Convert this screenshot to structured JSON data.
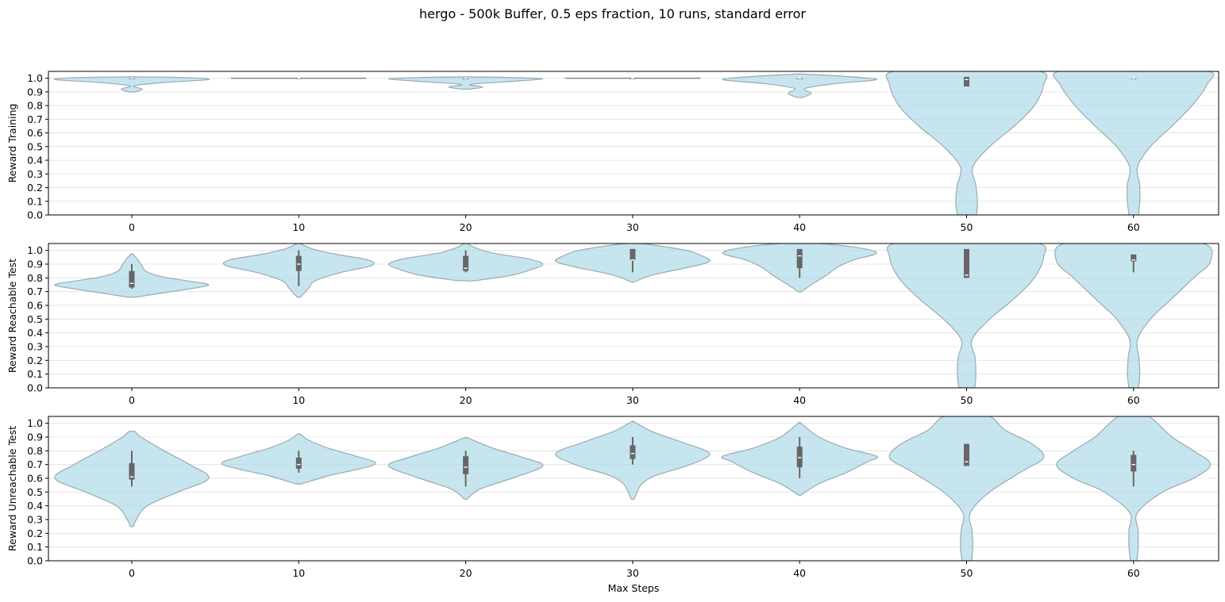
{
  "chart_data": {
    "type": "violin",
    "title": "hergo - 500k Buffer, 0.5 eps fraction, 10 runs, standard error",
    "xlabel": "Max Steps",
    "categories": [
      "0",
      "10",
      "20",
      "30",
      "40",
      "50",
      "60"
    ],
    "yticks": [
      "0.0",
      "0.1",
      "0.2",
      "0.3",
      "0.4",
      "0.5",
      "0.6",
      "0.7",
      "0.8",
      "0.9",
      "1.0"
    ],
    "ylim": [
      0,
      1.05
    ],
    "grid": "horizontal",
    "colors": {
      "violin_fill": "#add8e6",
      "violin_edge": "#9aaab4",
      "box": "#666666",
      "median": "#ffffff",
      "grid": "#e0e0e0"
    },
    "panels": [
      {
        "ylabel": "Reward Training",
        "violins": [
          {
            "category": "0",
            "range": [
              0.9,
              1.01
            ],
            "q1": 1.0,
            "median": 1.0,
            "q3": 1.0,
            "whisker": [
              1.0,
              1.0
            ],
            "profile": [
              [
                0.9,
                0.04
              ],
              [
                0.92,
                0.14
              ],
              [
                0.945,
                0.03
              ],
              [
                0.97,
                0.45
              ],
              [
                0.99,
                1.0
              ],
              [
                1.005,
                0.7
              ],
              [
                1.01,
                0.05
              ]
            ]
          },
          {
            "category": "10",
            "range": [
              1.0,
              1.0
            ],
            "q1": 1.0,
            "median": 1.0,
            "q3": 1.0,
            "whisker": [
              1.0,
              1.0
            ],
            "flat": true
          },
          {
            "category": "20",
            "range": [
              0.92,
              1.01
            ],
            "q1": 1.0,
            "median": 1.0,
            "q3": 1.0,
            "whisker": [
              1.0,
              1.0
            ],
            "profile": [
              [
                0.92,
                0.04
              ],
              [
                0.935,
                0.22
              ],
              [
                0.955,
                0.06
              ],
              [
                0.975,
                0.55
              ],
              [
                0.995,
                1.0
              ],
              [
                1.005,
                0.6
              ],
              [
                1.01,
                0.05
              ]
            ]
          },
          {
            "category": "30",
            "range": [
              1.0,
              1.0
            ],
            "q1": 1.0,
            "median": 1.0,
            "q3": 1.0,
            "whisker": [
              1.0,
              1.0
            ],
            "flat": true
          },
          {
            "category": "40",
            "range": [
              0.86,
              1.03
            ],
            "q1": 1.0,
            "median": 1.0,
            "q3": 1.0,
            "whisker": [
              1.0,
              1.0
            ],
            "profile": [
              [
                0.86,
                0.04
              ],
              [
                0.89,
                0.15
              ],
              [
                0.925,
                0.07
              ],
              [
                0.96,
                0.45
              ],
              [
                0.99,
                1.0
              ],
              [
                1.015,
                0.55
              ],
              [
                1.03,
                0.05
              ]
            ]
          },
          {
            "category": "50",
            "range": [
              0.0,
              1.05
            ],
            "q1": 0.94,
            "median": 0.99,
            "q3": 1.01,
            "whisker": [
              0.94,
              1.01
            ],
            "profile": [
              [
                0.0,
                0.12
              ],
              [
                0.1,
                0.14
              ],
              [
                0.22,
                0.12
              ],
              [
                0.35,
                0.08
              ],
              [
                0.5,
                0.3
              ],
              [
                0.65,
                0.62
              ],
              [
                0.8,
                0.88
              ],
              [
                0.95,
                1.0
              ],
              [
                1.05,
                0.95
              ]
            ]
          },
          {
            "category": "60",
            "range": [
              0.0,
              1.05
            ],
            "q1": 1.0,
            "median": 1.0,
            "q3": 1.0,
            "whisker": [
              1.0,
              1.0
            ],
            "profile": [
              [
                0.0,
                0.06
              ],
              [
                0.1,
                0.08
              ],
              [
                0.22,
                0.08
              ],
              [
                0.35,
                0.05
              ],
              [
                0.5,
                0.22
              ],
              [
                0.65,
                0.5
              ],
              [
                0.8,
                0.76
              ],
              [
                0.95,
                0.95
              ],
              [
                1.05,
                0.97
              ]
            ]
          }
        ]
      },
      {
        "ylabel": "Reward Reachable Test",
        "violins": [
          {
            "category": "0",
            "range": [
              0.66,
              0.97
            ],
            "q1": 0.73,
            "median": 0.76,
            "q3": 0.85,
            "whisker": [
              0.72,
              0.9
            ],
            "profile": [
              [
                0.66,
                0.05
              ],
              [
                0.69,
                0.4
              ],
              [
                0.72,
                0.75
              ],
              [
                0.75,
                1.0
              ],
              [
                0.78,
                0.7
              ],
              [
                0.81,
                0.38
              ],
              [
                0.85,
                0.18
              ],
              [
                0.9,
                0.12
              ],
              [
                0.97,
                0.02
              ]
            ]
          },
          {
            "category": "10",
            "range": [
              0.66,
              1.05
            ],
            "q1": 0.85,
            "median": 0.9,
            "q3": 0.96,
            "whisker": [
              0.74,
              1.0
            ],
            "profile": [
              [
                0.66,
                0.02
              ],
              [
                0.72,
                0.12
              ],
              [
                0.78,
                0.22
              ],
              [
                0.84,
                0.55
              ],
              [
                0.89,
                0.95
              ],
              [
                0.93,
                0.9
              ],
              [
                0.97,
                0.5
              ],
              [
                1.01,
                0.18
              ],
              [
                1.05,
                0.02
              ]
            ]
          },
          {
            "category": "20",
            "range": [
              0.78,
              1.05
            ],
            "q1": 0.85,
            "median": 0.87,
            "q3": 0.96,
            "whisker": [
              0.84,
              1.0
            ],
            "profile": [
              [
                0.78,
                0.12
              ],
              [
                0.82,
                0.6
              ],
              [
                0.86,
                0.85
              ],
              [
                0.9,
                1.0
              ],
              [
                0.94,
                0.8
              ],
              [
                0.98,
                0.35
              ],
              [
                1.02,
                0.12
              ],
              [
                1.05,
                0.02
              ]
            ]
          },
          {
            "category": "30",
            "range": [
              0.77,
              1.05
            ],
            "q1": 0.93,
            "median": 0.93,
            "q3": 1.01,
            "whisker": [
              0.84,
              1.01
            ],
            "profile": [
              [
                0.77,
                0.02
              ],
              [
                0.82,
                0.25
              ],
              [
                0.88,
                0.75
              ],
              [
                0.92,
                1.0
              ],
              [
                0.96,
                0.9
              ],
              [
                1.0,
                0.7
              ],
              [
                1.04,
                0.25
              ],
              [
                1.05,
                0.05
              ]
            ]
          },
          {
            "category": "40",
            "range": [
              0.7,
              1.05
            ],
            "q1": 0.87,
            "median": 0.96,
            "q3": 1.01,
            "whisker": [
              0.8,
              1.01
            ],
            "profile": [
              [
                0.7,
                0.02
              ],
              [
                0.76,
                0.18
              ],
              [
                0.82,
                0.35
              ],
              [
                0.88,
                0.5
              ],
              [
                0.93,
                0.7
              ],
              [
                0.98,
                1.0
              ],
              [
                1.02,
                0.75
              ],
              [
                1.05,
                0.25
              ]
            ]
          },
          {
            "category": "50",
            "range": [
              0.0,
              1.05
            ],
            "q1": 0.8,
            "median": 0.82,
            "q3": 1.01,
            "whisker": [
              0.8,
              1.01
            ],
            "profile": [
              [
                0.0,
                0.1
              ],
              [
                0.1,
                0.12
              ],
              [
                0.22,
                0.11
              ],
              [
                0.35,
                0.07
              ],
              [
                0.5,
                0.3
              ],
              [
                0.65,
                0.62
              ],
              [
                0.8,
                0.88
              ],
              [
                0.95,
                1.0
              ],
              [
                1.05,
                0.93
              ]
            ]
          },
          {
            "category": "60",
            "range": [
              0.0,
              1.05
            ],
            "q1": 0.92,
            "median": 0.93,
            "q3": 0.97,
            "whisker": [
              0.84,
              0.97
            ],
            "profile": [
              [
                0.0,
                0.06
              ],
              [
                0.1,
                0.08
              ],
              [
                0.22,
                0.07
              ],
              [
                0.35,
                0.05
              ],
              [
                0.5,
                0.22
              ],
              [
                0.65,
                0.5
              ],
              [
                0.8,
                0.78
              ],
              [
                0.92,
                1.0
              ],
              [
                1.05,
                0.9
              ]
            ]
          }
        ]
      },
      {
        "ylabel": "Reward Unreachable Test",
        "violins": [
          {
            "category": "0",
            "range": [
              0.25,
              0.94
            ],
            "q1": 0.59,
            "median": 0.61,
            "q3": 0.71,
            "whisker": [
              0.54,
              0.8
            ],
            "profile": [
              [
                0.25,
                0.02
              ],
              [
                0.3,
                0.06
              ],
              [
                0.4,
                0.2
              ],
              [
                0.5,
                0.6
              ],
              [
                0.6,
                1.0
              ],
              [
                0.7,
                0.75
              ],
              [
                0.8,
                0.42
              ],
              [
                0.9,
                0.12
              ],
              [
                0.94,
                0.04
              ]
            ]
          },
          {
            "category": "10",
            "range": [
              0.56,
              0.92
            ],
            "q1": 0.67,
            "median": 0.7,
            "q3": 0.75,
            "whisker": [
              0.64,
              0.8
            ],
            "profile": [
              [
                0.56,
                0.04
              ],
              [
                0.62,
                0.4
              ],
              [
                0.67,
                0.8
              ],
              [
                0.71,
                1.0
              ],
              [
                0.76,
                0.75
              ],
              [
                0.82,
                0.38
              ],
              [
                0.88,
                0.12
              ],
              [
                0.92,
                0.02
              ]
            ]
          },
          {
            "category": "20",
            "range": [
              0.45,
              0.89
            ],
            "q1": 0.63,
            "median": 0.68,
            "q3": 0.76,
            "whisker": [
              0.54,
              0.8
            ],
            "profile": [
              [
                0.45,
                0.02
              ],
              [
                0.52,
                0.18
              ],
              [
                0.6,
                0.6
              ],
              [
                0.69,
                1.0
              ],
              [
                0.75,
                0.75
              ],
              [
                0.82,
                0.35
              ],
              [
                0.89,
                0.04
              ]
            ]
          },
          {
            "category": "30",
            "range": [
              0.45,
              1.01
            ],
            "q1": 0.74,
            "median": 0.78,
            "q3": 0.84,
            "whisker": [
              0.7,
              0.9
            ],
            "profile": [
              [
                0.45,
                0.02
              ],
              [
                0.5,
                0.06
              ],
              [
                0.56,
                0.12
              ],
              [
                0.62,
                0.3
              ],
              [
                0.7,
                0.75
              ],
              [
                0.78,
                1.0
              ],
              [
                0.86,
                0.65
              ],
              [
                0.94,
                0.25
              ],
              [
                1.01,
                0.02
              ]
            ]
          },
          {
            "category": "40",
            "range": [
              0.48,
              1.0
            ],
            "q1": 0.68,
            "median": 0.75,
            "q3": 0.83,
            "whisker": [
              0.6,
              0.9
            ],
            "profile": [
              [
                0.48,
                0.02
              ],
              [
                0.56,
                0.25
              ],
              [
                0.64,
                0.6
              ],
              [
                0.72,
                0.88
              ],
              [
                0.76,
                1.0
              ],
              [
                0.82,
                0.6
              ],
              [
                0.9,
                0.25
              ],
              [
                1.0,
                0.02
              ]
            ]
          },
          {
            "category": "50",
            "range": [
              0.0,
              1.05
            ],
            "q1": 0.69,
            "median": 0.72,
            "q3": 0.85,
            "whisker": [
              0.69,
              0.85
            ],
            "profile": [
              [
                0.0,
                0.06
              ],
              [
                0.1,
                0.08
              ],
              [
                0.22,
                0.07
              ],
              [
                0.35,
                0.05
              ],
              [
                0.5,
                0.3
              ],
              [
                0.65,
                0.72
              ],
              [
                0.75,
                1.0
              ],
              [
                0.85,
                0.85
              ],
              [
                0.95,
                0.5
              ],
              [
                1.05,
                0.3
              ]
            ]
          },
          {
            "category": "60",
            "range": [
              0.0,
              1.05
            ],
            "q1": 0.65,
            "median": 0.7,
            "q3": 0.77,
            "whisker": [
              0.54,
              0.8
            ],
            "profile": [
              [
                0.0,
                0.04
              ],
              [
                0.1,
                0.06
              ],
              [
                0.22,
                0.06
              ],
              [
                0.35,
                0.05
              ],
              [
                0.5,
                0.38
              ],
              [
                0.6,
                0.78
              ],
              [
                0.7,
                1.0
              ],
              [
                0.8,
                0.78
              ],
              [
                0.9,
                0.5
              ],
              [
                1.05,
                0.2
              ]
            ]
          }
        ]
      }
    ]
  }
}
